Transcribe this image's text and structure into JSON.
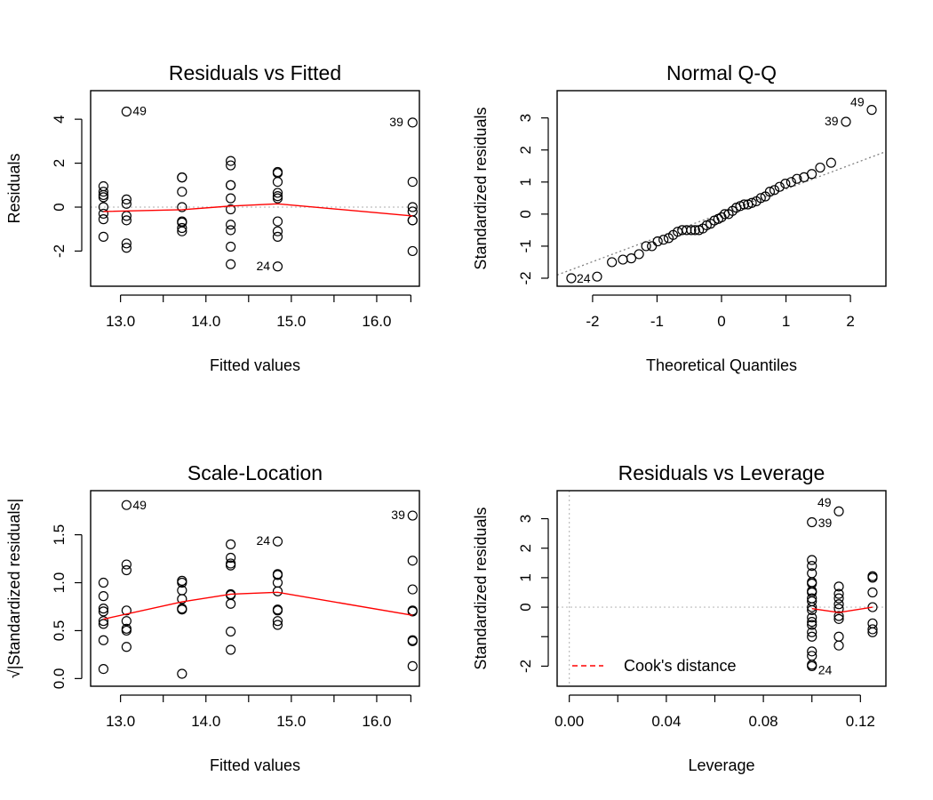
{
  "chart_data": [
    {
      "id": "rvf",
      "type": "scatter",
      "title": "Residuals vs Fitted",
      "xlabel": "Fitted values",
      "ylabel": "Residuals",
      "xlim": [
        12.65,
        16.5
      ],
      "ylim": [
        -3.6,
        5.3
      ],
      "xticks": [
        13,
        13.5,
        14,
        14.5,
        15,
        15.5,
        16,
        16.4
      ],
      "xtick_labels": [
        "13.0",
        "",
        "14.0",
        "",
        "15.0",
        "",
        "16.0",
        ""
      ],
      "yticks": [
        -2,
        0,
        2,
        4
      ],
      "ytick_labels": [
        "-2",
        "0",
        "2",
        "4"
      ],
      "hline": 0,
      "points": [
        {
          "x": 12.8,
          "y": 0.95
        },
        {
          "x": 12.8,
          "y": 0.7
        },
        {
          "x": 12.8,
          "y": 0.55
        },
        {
          "x": 12.8,
          "y": 0.45
        },
        {
          "x": 12.8,
          "y": 0.0
        },
        {
          "x": 12.8,
          "y": -0.3
        },
        {
          "x": 12.8,
          "y": -0.55
        },
        {
          "x": 12.8,
          "y": -1.35
        },
        {
          "x": 13.07,
          "y": 0.35
        },
        {
          "x": 13.07,
          "y": 0.15
        },
        {
          "x": 13.07,
          "y": -0.4
        },
        {
          "x": 13.07,
          "y": -0.6
        },
        {
          "x": 13.07,
          "y": -1.65
        },
        {
          "x": 13.07,
          "y": -1.85
        },
        {
          "x": 13.07,
          "y": 4.35,
          "label": "49"
        },
        {
          "x": 13.72,
          "y": 1.35
        },
        {
          "x": 13.72,
          "y": 1.35
        },
        {
          "x": 13.72,
          "y": 0.7
        },
        {
          "x": 13.72,
          "y": 0.0
        },
        {
          "x": 13.72,
          "y": -0.65
        },
        {
          "x": 13.72,
          "y": -0.7
        },
        {
          "x": 13.72,
          "y": -0.95
        },
        {
          "x": 13.72,
          "y": -1.1
        },
        {
          "x": 14.29,
          "y": 2.1
        },
        {
          "x": 14.29,
          "y": 1.9
        },
        {
          "x": 14.29,
          "y": 1.0
        },
        {
          "x": 14.29,
          "y": 1.0
        },
        {
          "x": 14.29,
          "y": 0.4
        },
        {
          "x": 14.29,
          "y": -0.1
        },
        {
          "x": 14.29,
          "y": -0.8
        },
        {
          "x": 14.29,
          "y": -1.05
        },
        {
          "x": 14.29,
          "y": -1.8
        },
        {
          "x": 14.29,
          "y": -2.6
        },
        {
          "x": 14.84,
          "y": 1.6
        },
        {
          "x": 14.84,
          "y": 1.55
        },
        {
          "x": 14.84,
          "y": 1.15
        },
        {
          "x": 14.84,
          "y": 0.65
        },
        {
          "x": 14.84,
          "y": 0.5
        },
        {
          "x": 14.84,
          "y": 0.4
        },
        {
          "x": 14.84,
          "y": -0.65
        },
        {
          "x": 14.84,
          "y": -1.1
        },
        {
          "x": 14.84,
          "y": -1.35
        },
        {
          "x": 14.84,
          "y": -2.7,
          "label": "24"
        },
        {
          "x": 16.42,
          "y": 3.85,
          "label": "39"
        },
        {
          "x": 16.42,
          "y": 1.15
        },
        {
          "x": 16.42,
          "y": 0.0
        },
        {
          "x": 16.42,
          "y": -0.2
        },
        {
          "x": 16.42,
          "y": -0.6
        },
        {
          "x": 16.42,
          "y": -0.6
        },
        {
          "x": 16.42,
          "y": -2.0
        }
      ],
      "smooth": [
        {
          "x": 12.8,
          "y": -0.2
        },
        {
          "x": 13.72,
          "y": -0.12
        },
        {
          "x": 14.29,
          "y": 0.05
        },
        {
          "x": 14.84,
          "y": 0.15
        },
        {
          "x": 16.42,
          "y": -0.4
        }
      ]
    },
    {
      "id": "qq",
      "type": "scatter",
      "title": "Normal Q-Q",
      "xlabel": "Theoretical Quantiles",
      "ylabel": "Standardized residuals",
      "xlim": [
        -2.55,
        2.55
      ],
      "ylim": [
        -2.25,
        3.85
      ],
      "xticks": [
        -2,
        -1,
        0,
        1,
        2
      ],
      "xtick_labels": [
        "-2",
        "-1",
        "0",
        "1",
        "2"
      ],
      "yticks": [
        -2,
        -1,
        0,
        1,
        2,
        3
      ],
      "ytick_labels": [
        "-2",
        "-1",
        "0",
        "1",
        "2",
        "3"
      ],
      "refline": [
        {
          "x": -2.55,
          "y": -1.9
        },
        {
          "x": 2.55,
          "y": 1.95
        }
      ],
      "points": [
        {
          "x": -2.33,
          "y": -2.0,
          "label": "24"
        },
        {
          "x": -1.93,
          "y": -1.95
        },
        {
          "x": -1.7,
          "y": -1.5
        },
        {
          "x": -1.53,
          "y": -1.42
        },
        {
          "x": -1.4,
          "y": -1.38
        },
        {
          "x": -1.28,
          "y": -1.25
        },
        {
          "x": -1.17,
          "y": -1.0
        },
        {
          "x": -1.08,
          "y": -1.0
        },
        {
          "x": -0.99,
          "y": -0.85
        },
        {
          "x": -0.9,
          "y": -0.8
        },
        {
          "x": -0.82,
          "y": -0.75
        },
        {
          "x": -0.75,
          "y": -0.65
        },
        {
          "x": -0.68,
          "y": -0.55
        },
        {
          "x": -0.61,
          "y": -0.5
        },
        {
          "x": -0.54,
          "y": -0.5
        },
        {
          "x": -0.47,
          "y": -0.5
        },
        {
          "x": -0.41,
          "y": -0.5
        },
        {
          "x": -0.35,
          "y": -0.5
        },
        {
          "x": -0.29,
          "y": -0.45
        },
        {
          "x": -0.23,
          "y": -0.35
        },
        {
          "x": -0.17,
          "y": -0.3
        },
        {
          "x": -0.11,
          "y": -0.2
        },
        {
          "x": -0.05,
          "y": -0.15
        },
        {
          "x": 0.0,
          "y": -0.1
        },
        {
          "x": 0.05,
          "y": 0.0
        },
        {
          "x": 0.11,
          "y": 0.0
        },
        {
          "x": 0.17,
          "y": 0.1
        },
        {
          "x": 0.23,
          "y": 0.2
        },
        {
          "x": 0.29,
          "y": 0.25
        },
        {
          "x": 0.35,
          "y": 0.3
        },
        {
          "x": 0.41,
          "y": 0.3
        },
        {
          "x": 0.47,
          "y": 0.35
        },
        {
          "x": 0.54,
          "y": 0.4
        },
        {
          "x": 0.61,
          "y": 0.5
        },
        {
          "x": 0.68,
          "y": 0.55
        },
        {
          "x": 0.75,
          "y": 0.7
        },
        {
          "x": 0.82,
          "y": 0.75
        },
        {
          "x": 0.9,
          "y": 0.85
        },
        {
          "x": 0.99,
          "y": 0.95
        },
        {
          "x": 1.08,
          "y": 1.0
        },
        {
          "x": 1.17,
          "y": 1.1
        },
        {
          "x": 1.28,
          "y": 1.15
        },
        {
          "x": 1.4,
          "y": 1.25
        },
        {
          "x": 1.53,
          "y": 1.45
        },
        {
          "x": 1.7,
          "y": 1.6
        },
        {
          "x": 1.93,
          "y": 2.88,
          "label": "39"
        },
        {
          "x": 2.33,
          "y": 3.25,
          "label": "49"
        }
      ]
    },
    {
      "id": "sl",
      "type": "scatter",
      "title": "Scale-Location",
      "xlabel": "Fitted values",
      "ylabel": "√|Standardized residuals|",
      "xlim": [
        12.65,
        16.5
      ],
      "ylim": [
        -0.08,
        1.96
      ],
      "xticks": [
        13,
        13.5,
        14,
        14.5,
        15,
        15.5,
        16,
        16.4
      ],
      "xtick_labels": [
        "13.0",
        "",
        "14.0",
        "",
        "15.0",
        "",
        "16.0",
        ""
      ],
      "yticks": [
        0,
        0.5,
        1,
        1.5
      ],
      "ytick_labels": [
        "0.0",
        "0.5",
        "1.0",
        "1.5"
      ],
      "points": [
        {
          "x": 12.8,
          "y": 1.0
        },
        {
          "x": 12.8,
          "y": 0.86
        },
        {
          "x": 12.8,
          "y": 0.73
        },
        {
          "x": 12.8,
          "y": 0.7
        },
        {
          "x": 12.8,
          "y": 0.6
        },
        {
          "x": 12.8,
          "y": 0.57
        },
        {
          "x": 12.8,
          "y": 0.4
        },
        {
          "x": 12.8,
          "y": 0.1
        },
        {
          "x": 13.07,
          "y": 1.81,
          "label": "49"
        },
        {
          "x": 13.07,
          "y": 1.19
        },
        {
          "x": 13.07,
          "y": 1.13
        },
        {
          "x": 13.07,
          "y": 0.71
        },
        {
          "x": 13.07,
          "y": 0.6
        },
        {
          "x": 13.07,
          "y": 0.52
        },
        {
          "x": 13.07,
          "y": 0.5
        },
        {
          "x": 13.07,
          "y": 0.33
        },
        {
          "x": 13.72,
          "y": 1.02
        },
        {
          "x": 13.72,
          "y": 1.0
        },
        {
          "x": 13.72,
          "y": 0.92
        },
        {
          "x": 13.72,
          "y": 0.83
        },
        {
          "x": 13.72,
          "y": 0.73
        },
        {
          "x": 13.72,
          "y": 0.72
        },
        {
          "x": 13.72,
          "y": 0.05
        },
        {
          "x": 14.29,
          "y": 1.4
        },
        {
          "x": 14.29,
          "y": 1.26
        },
        {
          "x": 14.29,
          "y": 1.2
        },
        {
          "x": 14.29,
          "y": 1.18
        },
        {
          "x": 14.29,
          "y": 0.88
        },
        {
          "x": 14.29,
          "y": 0.87
        },
        {
          "x": 14.29,
          "y": 0.78
        },
        {
          "x": 14.29,
          "y": 0.49
        },
        {
          "x": 14.29,
          "y": 0.3
        },
        {
          "x": 14.84,
          "y": 1.43,
          "label": "24"
        },
        {
          "x": 14.84,
          "y": 1.09
        },
        {
          "x": 14.84,
          "y": 1.08
        },
        {
          "x": 14.84,
          "y": 1.0
        },
        {
          "x": 14.84,
          "y": 0.91
        },
        {
          "x": 14.84,
          "y": 0.72
        },
        {
          "x": 14.84,
          "y": 0.71
        },
        {
          "x": 14.84,
          "y": 0.6
        },
        {
          "x": 14.84,
          "y": 0.56
        },
        {
          "x": 16.42,
          "y": 1.7,
          "label": "39"
        },
        {
          "x": 16.42,
          "y": 1.23
        },
        {
          "x": 16.42,
          "y": 0.93
        },
        {
          "x": 16.42,
          "y": 0.71
        },
        {
          "x": 16.42,
          "y": 0.7
        },
        {
          "x": 16.42,
          "y": 0.4
        },
        {
          "x": 16.42,
          "y": 0.39
        },
        {
          "x": 16.42,
          "y": 0.13
        }
      ],
      "smooth": [
        {
          "x": 12.8,
          "y": 0.62
        },
        {
          "x": 13.72,
          "y": 0.8
        },
        {
          "x": 14.29,
          "y": 0.88
        },
        {
          "x": 14.84,
          "y": 0.9
        },
        {
          "x": 16.42,
          "y": 0.66
        }
      ]
    },
    {
      "id": "rvl",
      "type": "scatter",
      "title": "Residuals vs Leverage",
      "xlabel": "Leverage",
      "ylabel": "Standardized residuals",
      "xlim": [
        -0.005,
        0.1305
      ],
      "ylim": [
        -2.68,
        3.95
      ],
      "xticks": [
        0,
        0.02,
        0.04,
        0.06,
        0.08,
        0.1,
        0.12
      ],
      "xtick_labels": [
        "0.00",
        "",
        "0.04",
        "",
        "0.08",
        "",
        "0.12"
      ],
      "yticks": [
        -2,
        -1,
        0,
        1,
        2,
        3
      ],
      "ytick_labels": [
        "-2",
        "",
        "0",
        "1",
        "2",
        "3"
      ],
      "hline": 0,
      "vline": 0,
      "legend": {
        "label": "Cook's distance",
        "position": "bottom-left",
        "color": "#ff0000"
      },
      "points": [
        {
          "x": 0.1,
          "y": 2.88
        },
        {
          "x": 0.1,
          "y": 1.6
        },
        {
          "x": 0.1,
          "y": 1.4
        },
        {
          "x": 0.1,
          "y": 1.15
        },
        {
          "x": 0.1,
          "y": 0.85
        },
        {
          "x": 0.1,
          "y": 0.8
        },
        {
          "x": 0.1,
          "y": 0.55
        },
        {
          "x": 0.1,
          "y": 0.5
        },
        {
          "x": 0.1,
          "y": 0.3
        },
        {
          "x": 0.1,
          "y": 0.2
        },
        {
          "x": 0.1,
          "y": 0.0
        },
        {
          "x": 0.1,
          "y": -0.1
        },
        {
          "x": 0.1,
          "y": -0.35
        },
        {
          "x": 0.1,
          "y": -0.5
        },
        {
          "x": 0.1,
          "y": -0.6
        },
        {
          "x": 0.1,
          "y": -0.85
        },
        {
          "x": 0.1,
          "y": -1.0
        },
        {
          "x": 0.1,
          "y": -1.5
        },
        {
          "x": 0.1,
          "y": -1.65
        },
        {
          "x": 0.1,
          "y": -1.95
        },
        {
          "x": 0.1,
          "y": -2.0
        },
        {
          "x": 0.1,
          "y": 2.9,
          "label": "39"
        },
        {
          "x": 0.1,
          "y": -2.0,
          "label": "24"
        },
        {
          "x": 0.1111,
          "y": 3.25,
          "label": "49"
        },
        {
          "x": 0.1111,
          "y": 0.7
        },
        {
          "x": 0.1111,
          "y": 0.45
        },
        {
          "x": 0.1111,
          "y": 0.3
        },
        {
          "x": 0.1111,
          "y": 0.1
        },
        {
          "x": 0.1111,
          "y": -0.05
        },
        {
          "x": 0.1111,
          "y": -0.3
        },
        {
          "x": 0.1111,
          "y": -0.4
        },
        {
          "x": 0.1111,
          "y": -1.0
        },
        {
          "x": 0.1111,
          "y": -1.3
        },
        {
          "x": 0.125,
          "y": 1.05
        },
        {
          "x": 0.125,
          "y": 1.0
        },
        {
          "x": 0.125,
          "y": 0.5
        },
        {
          "x": 0.125,
          "y": 0.0
        },
        {
          "x": 0.125,
          "y": -0.55
        },
        {
          "x": 0.125,
          "y": -0.75
        },
        {
          "x": 0.125,
          "y": -0.85
        }
      ],
      "smooth": [
        {
          "x": 0.1,
          "y": -0.05
        },
        {
          "x": 0.1111,
          "y": -0.18
        },
        {
          "x": 0.125,
          "y": 0.0
        }
      ]
    }
  ]
}
